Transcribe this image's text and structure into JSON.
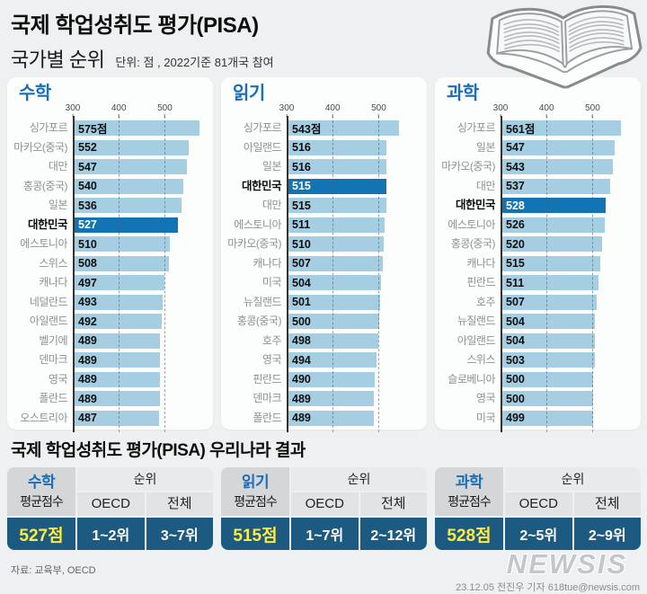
{
  "header": {
    "title_line1": "국제 학업성취도 평가(PISA)",
    "title_line2": "국가별 순위",
    "subtitle": "단위: 점 , 2022기준 81개국 참여"
  },
  "chart_data": [
    {
      "type": "bar",
      "title": "수학",
      "unit": "점",
      "xlim": [
        300,
        585
      ],
      "ticks": [
        300,
        400,
        500
      ],
      "grid": "dashed-vertical",
      "categories": [
        "싱가포르",
        "마카오(중국)",
        "대만",
        "홍콩(중국)",
        "일본",
        "대한민국",
        "에스토니아",
        "스위스",
        "캐나다",
        "네덜란드",
        "아일랜드",
        "벨기에",
        "덴마크",
        "영국",
        "폴란드",
        "오스트리아"
      ],
      "values": [
        575,
        552,
        547,
        540,
        536,
        527,
        510,
        508,
        497,
        493,
        492,
        489,
        489,
        489,
        489,
        487
      ],
      "value_labels": [
        "575점",
        "552",
        "547",
        "540",
        "536",
        "527",
        "510",
        "508",
        "497",
        "493",
        "492",
        "489",
        "489",
        "489",
        "489",
        "487"
      ],
      "highlight_index": 5,
      "highlight_country": "대한민국"
    },
    {
      "type": "bar",
      "title": "읽기",
      "unit": "점",
      "xlim": [
        300,
        585
      ],
      "ticks": [
        300,
        400,
        500
      ],
      "grid": "dashed-vertical",
      "categories": [
        "싱가포르",
        "아일랜드",
        "일본",
        "대한민국",
        "대만",
        "에스토니아",
        "마카오(중국)",
        "캐나다",
        "미국",
        "뉴질랜드",
        "홍콩(중국)",
        "호주",
        "영국",
        "핀란드",
        "덴마크",
        "폴란드"
      ],
      "values": [
        543,
        516,
        516,
        515,
        515,
        511,
        510,
        507,
        504,
        501,
        500,
        498,
        494,
        490,
        489,
        489
      ],
      "value_labels": [
        "543점",
        "516",
        "516",
        "515",
        "515",
        "511",
        "510",
        "507",
        "504",
        "501",
        "500",
        "498",
        "494",
        "490",
        "489",
        "489"
      ],
      "highlight_index": 3,
      "highlight_country": "대한민국"
    },
    {
      "type": "bar",
      "title": "과학",
      "unit": "점",
      "xlim": [
        300,
        585
      ],
      "ticks": [
        300,
        400,
        500
      ],
      "grid": "dashed-vertical",
      "categories": [
        "싱가포르",
        "일본",
        "마카오(중국)",
        "대만",
        "대한민국",
        "에스토니아",
        "홍콩(중국)",
        "캐나다",
        "핀란드",
        "호주",
        "뉴질랜드",
        "아일랜드",
        "스위스",
        "슬로베니아",
        "영국",
        "미국"
      ],
      "values": [
        561,
        547,
        543,
        537,
        528,
        526,
        520,
        515,
        511,
        507,
        504,
        504,
        503,
        500,
        500,
        499
      ],
      "value_labels": [
        "561점",
        "547",
        "543",
        "537",
        "528",
        "526",
        "520",
        "515",
        "511",
        "507",
        "504",
        "504",
        "503",
        "500",
        "500",
        "499"
      ],
      "highlight_index": 4,
      "highlight_country": "대한민국"
    }
  ],
  "result_section": {
    "title": "국제 학업성취도 평가(PISA) 우리나라 결과",
    "labels": {
      "avg": "평균점수",
      "rank": "순위",
      "oecd": "OECD",
      "total": "전체"
    },
    "tables": [
      {
        "subject": "수학",
        "score": "527점",
        "oecd": "1~2위",
        "total": "3~7위"
      },
      {
        "subject": "읽기",
        "score": "515점",
        "oecd": "1~7위",
        "total": "2~12위"
      },
      {
        "subject": "과학",
        "score": "528점",
        "oecd": "2~5위",
        "total": "2~9위"
      }
    ],
    "source": "자료: 교육부, OECD"
  },
  "footer": {
    "watermark": "NEWSIS",
    "credit": "23.12.05 전진우 기자 618tue@newsis.com"
  },
  "icons": {
    "book": "open-book-illustration"
  },
  "colors": {
    "background": "#eef0f1",
    "card": "#fcfdfd",
    "bar": "#a6cee3",
    "bar_highlight": "#1274b2",
    "table_blue": "#1d5a81",
    "score_yellow": "#ffec3d",
    "title_blue": "#1a6db6"
  }
}
